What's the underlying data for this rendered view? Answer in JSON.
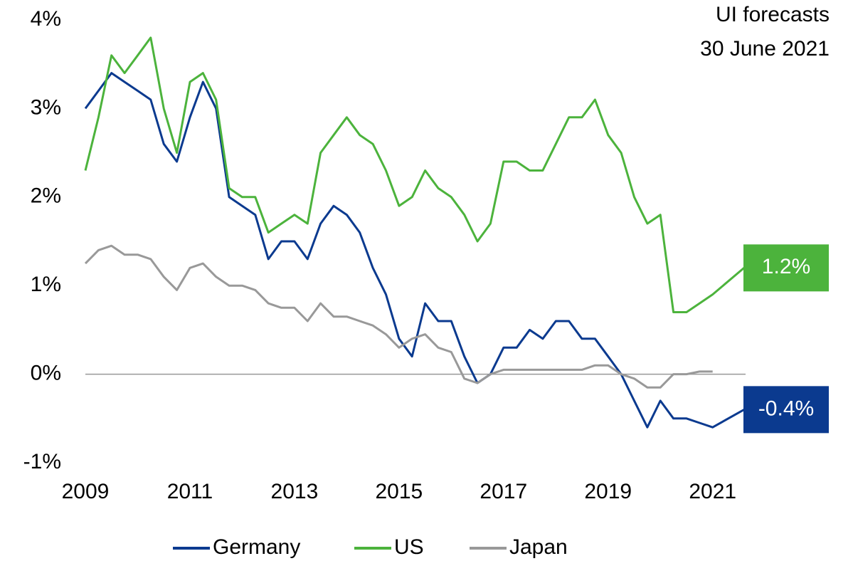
{
  "chart_data": {
    "type": "line",
    "title": "UI forecasts",
    "subtitle": "30 June 2021",
    "x": [
      2009,
      2009.25,
      2009.5,
      2009.75,
      2010,
      2010.25,
      2010.5,
      2010.75,
      2011,
      2011.25,
      2011.5,
      2011.75,
      2012,
      2012.25,
      2012.5,
      2012.75,
      2013,
      2013.25,
      2013.5,
      2013.75,
      2014,
      2014.25,
      2014.5,
      2014.75,
      2015,
      2015.25,
      2015.5,
      2015.75,
      2016,
      2016.25,
      2016.5,
      2016.75,
      2017,
      2017.25,
      2017.5,
      2017.75,
      2018,
      2018.25,
      2018.5,
      2018.75,
      2019,
      2019.25,
      2019.5,
      2019.75,
      2020,
      2020.25,
      2020.5,
      2020.75,
      2021,
      2021.6
    ],
    "series": [
      {
        "name": "Germany",
        "color": "#0b3a8f",
        "values": [
          3.0,
          3.2,
          3.4,
          3.3,
          3.2,
          3.1,
          2.6,
          2.4,
          2.9,
          3.3,
          3.0,
          2.0,
          1.9,
          1.8,
          1.3,
          1.5,
          1.5,
          1.3,
          1.7,
          1.9,
          1.8,
          1.6,
          1.2,
          0.9,
          0.4,
          0.2,
          0.8,
          0.6,
          0.6,
          0.2,
          -0.1,
          0.0,
          0.3,
          0.3,
          0.5,
          0.4,
          0.6,
          0.6,
          0.4,
          0.4,
          0.2,
          0.0,
          -0.3,
          -0.6,
          -0.3,
          -0.5,
          -0.5,
          -0.55,
          -0.6,
          -0.4
        ]
      },
      {
        "name": "US",
        "color": "#4cb33c",
        "values": [
          2.3,
          2.9,
          3.6,
          3.4,
          3.6,
          3.8,
          3.0,
          2.5,
          3.3,
          3.4,
          3.1,
          2.1,
          2.0,
          2.0,
          1.6,
          1.7,
          1.8,
          1.7,
          2.5,
          2.7,
          2.9,
          2.7,
          2.6,
          2.3,
          1.9,
          2.0,
          2.3,
          2.1,
          2.0,
          1.8,
          1.5,
          1.7,
          2.4,
          2.4,
          2.3,
          2.3,
          2.6,
          2.9,
          2.9,
          3.1,
          2.7,
          2.5,
          2.0,
          1.7,
          1.8,
          0.7,
          0.7,
          0.8,
          0.9,
          1.2
        ]
      },
      {
        "name": "Japan",
        "color": "#999999",
        "values": [
          1.25,
          1.4,
          1.45,
          1.35,
          1.35,
          1.3,
          1.1,
          0.95,
          1.2,
          1.25,
          1.1,
          1.0,
          1.0,
          0.95,
          0.8,
          0.75,
          0.75,
          0.6,
          0.8,
          0.65,
          0.65,
          0.6,
          0.55,
          0.45,
          0.3,
          0.4,
          0.45,
          0.3,
          0.25,
          -0.05,
          -0.1,
          0.0,
          0.05,
          0.05,
          0.05,
          0.05,
          0.05,
          0.05,
          0.05,
          0.1,
          0.1,
          0.0,
          -0.05,
          -0.15,
          -0.15,
          0.0,
          0.0,
          0.03,
          0.03,
          null
        ]
      }
    ],
    "annotations": [
      {
        "text": "1.2%",
        "value": 1.2,
        "color": "#4cb33c"
      },
      {
        "text": "-0.4%",
        "value": -0.4,
        "color": "#0b3a8f"
      }
    ],
    "xlim": [
      2009,
      2021.63
    ],
    "xticks": [
      2009,
      2011,
      2013,
      2015,
      2017,
      2019,
      2021
    ],
    "ylim": [
      -1,
      4
    ],
    "yticks": [
      {
        "value": -1,
        "label": "-1%"
      },
      {
        "value": 0,
        "label": "0%"
      },
      {
        "value": 1,
        "label": "1%"
      },
      {
        "value": 2,
        "label": "2%"
      },
      {
        "value": 3,
        "label": "3%"
      },
      {
        "value": 4,
        "label": "4%"
      }
    ],
    "legend": "bottom"
  }
}
